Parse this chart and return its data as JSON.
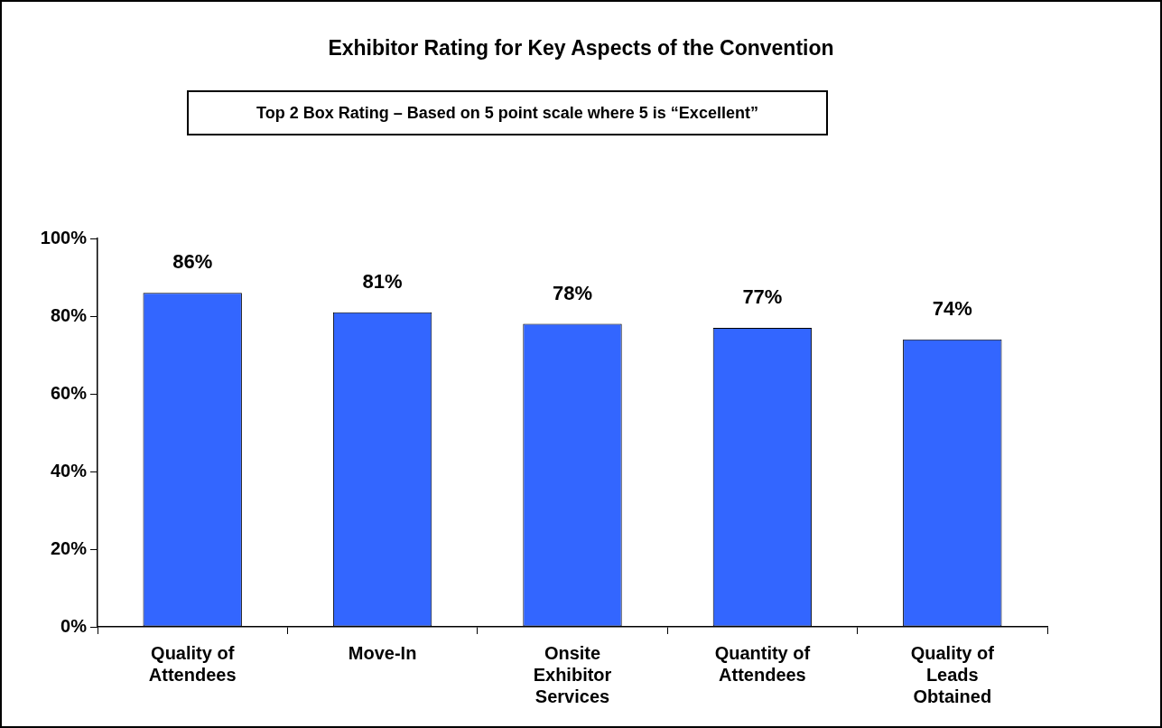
{
  "chart_data": {
    "type": "bar",
    "title": "Exhibitor Rating for Key Aspects of the Convention",
    "subtitle": "Top 2 Box Rating – Based on 5 point scale where 5 is “Excellent”",
    "categories": [
      "Quality of Attendees",
      "Move-In",
      "Onsite Exhibitor Services",
      "Quantity of Attendees",
      "Quality of Leads Obtained"
    ],
    "values": [
      86,
      81,
      78,
      77,
      74
    ],
    "value_labels": [
      "86%",
      "81%",
      "78%",
      "77%",
      "74%"
    ],
    "color": "#3366ff",
    "ylim": [
      0,
      100
    ],
    "yticks": [
      {
        "value": 0,
        "label": "0%"
      },
      {
        "value": 20,
        "label": "20%"
      },
      {
        "value": 40,
        "label": "40%"
      },
      {
        "value": 60,
        "label": "60%"
      },
      {
        "value": 80,
        "label": "80%"
      },
      {
        "value": 100,
        "label": "100%"
      }
    ],
    "grid": false,
    "legend": false
  }
}
